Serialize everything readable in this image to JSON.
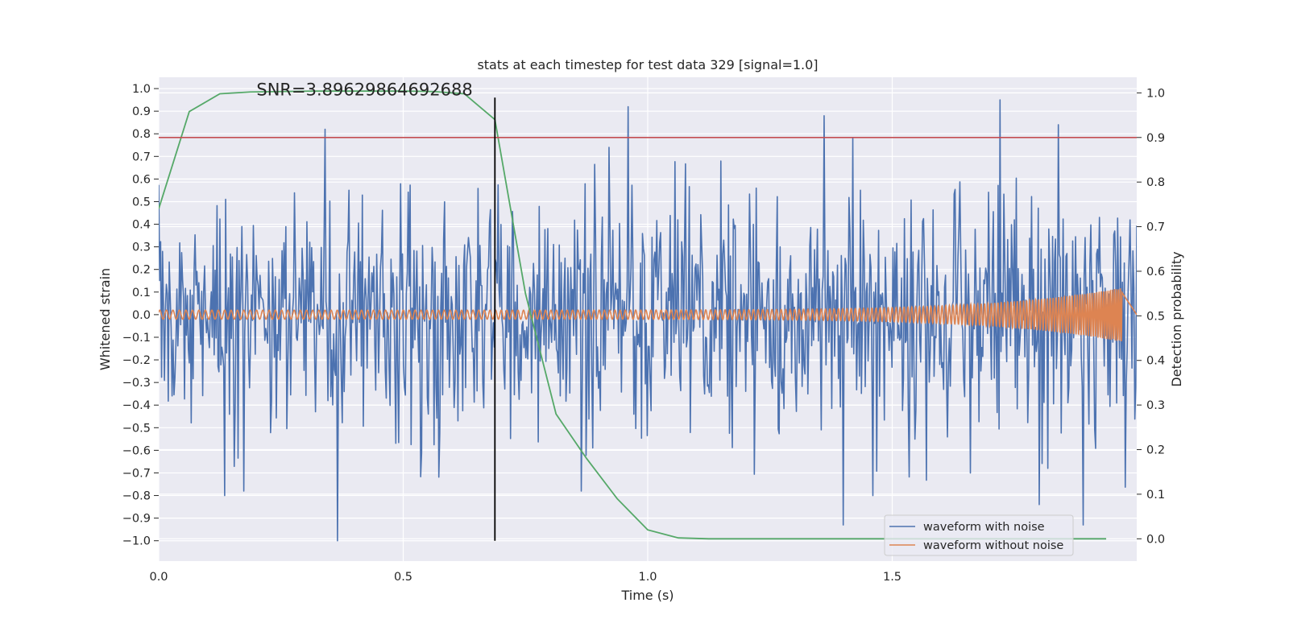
{
  "chart_data": {
    "type": "line",
    "title": "stats at each timestep for test data 329 [signal=1.0]",
    "xlabel": "Time (s)",
    "ylabel_left": "Whitened strain",
    "ylabel_right": "Detection probability",
    "xlim": [
      0.0,
      2.0
    ],
    "ylim_left": [
      -1.09,
      1.05
    ],
    "ylim_right": [
      -0.05,
      1.035
    ],
    "x_ticks": [
      0.0,
      0.5,
      1.0,
      1.5
    ],
    "x_tick_labels": [
      "0.0",
      "0.5",
      "1.0",
      "1.5"
    ],
    "y_left_ticks": [
      -1.0,
      -0.9,
      -0.8,
      -0.7,
      -0.6,
      -0.5,
      -0.4,
      -0.3,
      -0.2,
      -0.1,
      0.0,
      0.1,
      0.2,
      0.3,
      0.4,
      0.5,
      0.6,
      0.7,
      0.8,
      0.9,
      1.0
    ],
    "y_left_tick_labels": [
      "−1.0",
      "−0.9",
      "−0.8",
      "−0.7",
      "−0.6",
      "−0.5",
      "−0.4",
      "−0.3",
      "−0.2",
      "−0.1",
      "0.0",
      "0.1",
      "0.2",
      "0.3",
      "0.4",
      "0.5",
      "0.6",
      "0.7",
      "0.8",
      "0.9",
      "1.0"
    ],
    "y_right_ticks": [
      0.0,
      0.1,
      0.2,
      0.3,
      0.4,
      0.5,
      0.6,
      0.7,
      0.8,
      0.9,
      1.0
    ],
    "y_right_tick_labels": [
      "0.0",
      "0.1",
      "0.2",
      "0.3",
      "0.4",
      "0.5",
      "0.6",
      "0.7",
      "0.8",
      "0.9",
      "1.0"
    ],
    "grid": true,
    "legend_placement": "lower-right",
    "annotation": "SNR=3.89629864692688",
    "annotation_at": {
      "x": 0.2,
      "y_left": 0.97
    },
    "threshold_line": {
      "y_right": 0.9,
      "color": "#c44e52"
    },
    "marker_line": {
      "x": 0.6875,
      "y_left_range": [
        -1.0,
        0.96
      ],
      "color": "#000000"
    },
    "series": [
      {
        "name": "waveform with noise",
        "color": "#4c72b0",
        "axis": "left",
        "style": "noise",
        "x_range": [
          0.0,
          2.0
        ],
        "n_points": 1024,
        "peaks": [
          {
            "x": 0.34,
            "y": 0.82
          },
          {
            "x": 0.365,
            "y": -1.0
          },
          {
            "x": 0.96,
            "y": 0.92
          },
          {
            "x": 1.36,
            "y": 0.88
          },
          {
            "x": 1.4,
            "y": -0.93
          },
          {
            "x": 1.72,
            "y": 0.95
          },
          {
            "x": 1.8,
            "y": -0.84
          },
          {
            "x": 1.89,
            "y": -0.93
          },
          {
            "x": 0.135,
            "y": -0.8
          },
          {
            "x": 1.46,
            "y": -0.8
          },
          {
            "x": 1.84,
            "y": 0.84
          },
          {
            "x": 1.42,
            "y": 0.78
          }
        ]
      },
      {
        "name": "waveform without noise",
        "color": "#dd8452",
        "axis": "left",
        "style": "chirp",
        "x_range": [
          0.0,
          1.97
        ],
        "amplitude_start": 0.02,
        "amplitude_end": 0.12
      },
      {
        "name": "detection probability",
        "color": "#55a868",
        "axis": "right",
        "x": [
          0.0,
          0.0625,
          0.125,
          0.1875,
          0.25,
          0.3125,
          0.375,
          0.4375,
          0.5,
          0.5625,
          0.625,
          0.6875,
          0.75,
          0.8125,
          0.875,
          0.9375,
          1.0,
          1.0625,
          1.125,
          1.1875,
          1.25,
          1.3125,
          1.375,
          1.4375,
          1.5,
          1.5625,
          1.625,
          1.6875,
          1.75,
          1.8125,
          1.875,
          1.9375
        ],
        "y": [
          0.74,
          0.958,
          0.998,
          1.002,
          1.003,
          1.004,
          1.004,
          1.004,
          1.004,
          1.003,
          0.998,
          0.94,
          0.55,
          0.28,
          0.18,
          0.09,
          0.02,
          0.002,
          0.0,
          0.0,
          0.0,
          0.0,
          0.0,
          0.0,
          0.0,
          0.0,
          0.0,
          0.0,
          0.0,
          0.0,
          0.0,
          0.0
        ]
      }
    ]
  }
}
